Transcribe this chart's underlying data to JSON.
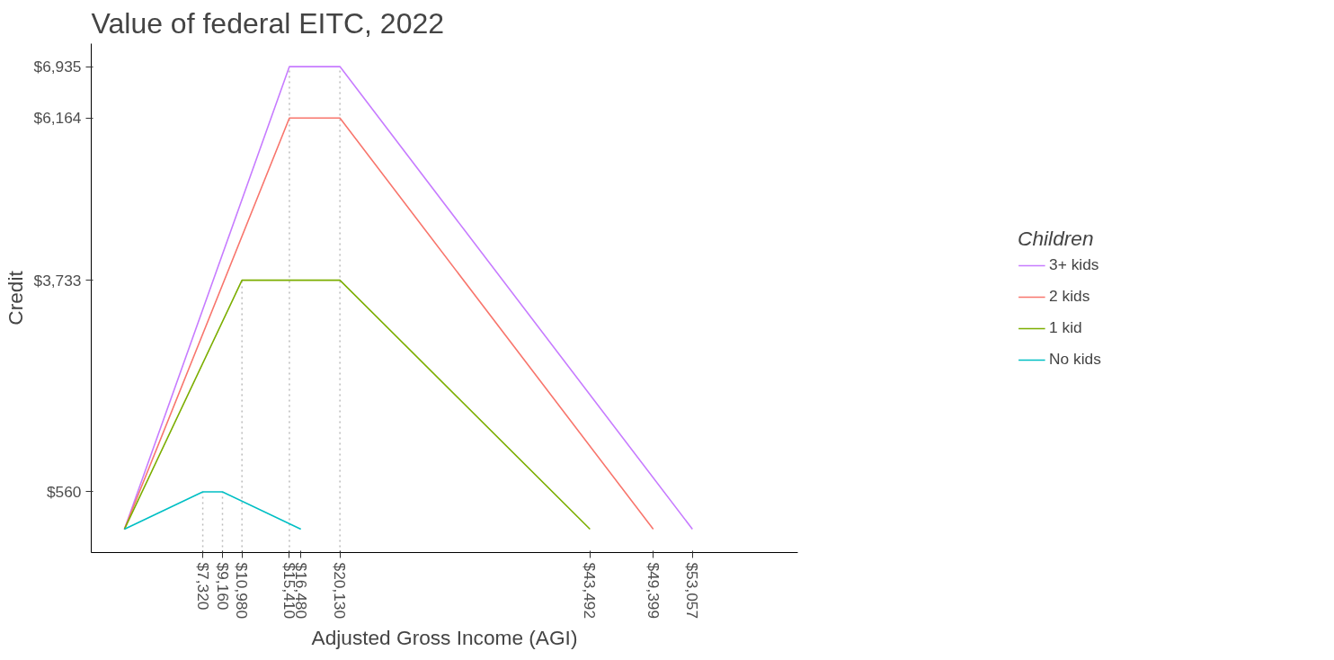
{
  "chart_data": {
    "type": "line",
    "title": "Value of federal EITC, 2022",
    "xlabel": "Adjusted Gross Income (AGI)",
    "ylabel": "Credit",
    "legend_title": "Children",
    "legend": "right",
    "grid": false,
    "marker": "none",
    "line_style": "solid",
    "series": [
      {
        "name": "3+ kids",
        "color": "#c77cff",
        "x": [
          0,
          15410,
          20130,
          53057
        ],
        "values": [
          0,
          6935,
          6935,
          0
        ]
      },
      {
        "name": "2 kids",
        "color": "#f8766d",
        "x": [
          0,
          15410,
          20130,
          49399
        ],
        "values": [
          0,
          6164,
          6164,
          0
        ]
      },
      {
        "name": "1 kid",
        "color": "#7cae00",
        "x": [
          0,
          10980,
          20130,
          43492
        ],
        "values": [
          0,
          3733,
          3733,
          0
        ]
      },
      {
        "name": "No kids",
        "color": "#00bfc4",
        "x": [
          0,
          7320,
          9160,
          16480
        ],
        "values": [
          0,
          560,
          560,
          0
        ]
      }
    ],
    "xlim": [
      -3100,
      62900
    ],
    "ylim": [
      -350,
      7280
    ],
    "xticks": [
      {
        "value": 7320,
        "label": "$7,320"
      },
      {
        "value": 9160,
        "label": "$9,160"
      },
      {
        "value": 10980,
        "label": "$10,980"
      },
      {
        "value": 15410,
        "label": "$15,410"
      },
      {
        "value": 16480,
        "label": "$16,480"
      },
      {
        "value": 20130,
        "label": "$20,130"
      },
      {
        "value": 43492,
        "label": "$43,492"
      },
      {
        "value": 49399,
        "label": "$49,399"
      },
      {
        "value": 53057,
        "label": "$53,057"
      }
    ],
    "yticks": [
      {
        "value": 560,
        "label": "$560"
      },
      {
        "value": 3733,
        "label": "$3,733"
      },
      {
        "value": 6164,
        "label": "$6,164"
      },
      {
        "value": 6935,
        "label": "$6,935"
      }
    ],
    "ref_lines": [
      {
        "axis": "x",
        "value": 7320,
        "line_style": "dotted",
        "color": "#bbbbbb"
      },
      {
        "axis": "x",
        "value": 9160,
        "line_style": "dotted",
        "color": "#bbbbbb"
      },
      {
        "axis": "x",
        "value": 10980,
        "line_style": "dotted",
        "color": "#bbbbbb"
      },
      {
        "axis": "x",
        "value": 15410,
        "line_style": "dotted",
        "color": "#bbbbbb"
      },
      {
        "axis": "x",
        "value": 20130,
        "line_style": "dotted",
        "color": "#bbbbbb"
      }
    ]
  }
}
